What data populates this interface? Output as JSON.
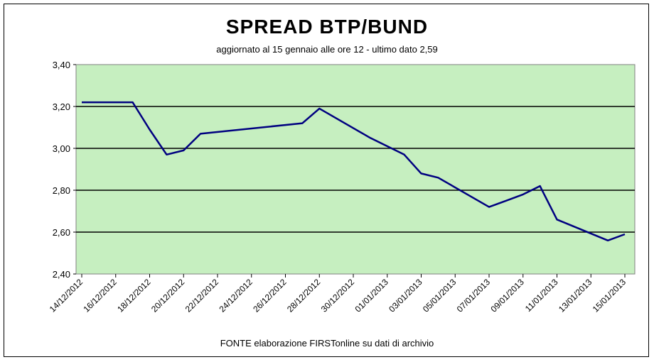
{
  "chart_data": {
    "type": "line",
    "title": "SPREAD  BTP/BUND",
    "subtitle": "aggiornato al 15 gennaio alle ore 12 - ultimo dato 2,59",
    "source": "FONTE elaborazione FIRSTonline su dati di archivio",
    "ylim": [
      2.4,
      3.4
    ],
    "yticks": [
      "2,40",
      "2,60",
      "2,80",
      "3,00",
      "3,20",
      "3,40"
    ],
    "ytick_values": [
      2.4,
      2.6,
      2.8,
      3.0,
      3.2,
      3.4
    ],
    "xlim": [
      "14/12/2012",
      "15/01/2013"
    ],
    "xticks": [
      "14/12/2012",
      "16/12/2012",
      "18/12/2012",
      "20/12/2012",
      "22/12/2012",
      "24/12/2012",
      "26/12/2012",
      "28/12/2012",
      "30/12/2012",
      "01/01/2013",
      "03/01/2013",
      "05/01/2013",
      "07/01/2013",
      "09/01/2013",
      "11/01/2013",
      "13/01/2013",
      "15/01/2013"
    ],
    "grid": true,
    "plot_background": "#c6efc0",
    "line_color": "#000080",
    "series": [
      {
        "x": [
          "14/12/2012",
          "17/12/2012",
          "18/12/2012",
          "19/12/2012",
          "20/12/2012",
          "21/12/2012",
          "27/12/2012",
          "28/12/2012",
          "31/12/2012",
          "02/01/2013",
          "03/01/2013",
          "04/01/2013",
          "07/01/2013",
          "08/01/2013",
          "09/01/2013",
          "10/01/2013",
          "11/01/2013",
          "14/01/2013",
          "15/01/2013"
        ],
        "values": [
          3.22,
          3.22,
          3.09,
          2.97,
          2.99,
          3.07,
          3.12,
          3.19,
          3.05,
          2.97,
          2.88,
          2.86,
          2.72,
          2.75,
          2.78,
          2.82,
          2.66,
          2.56,
          2.59
        ]
      }
    ]
  }
}
